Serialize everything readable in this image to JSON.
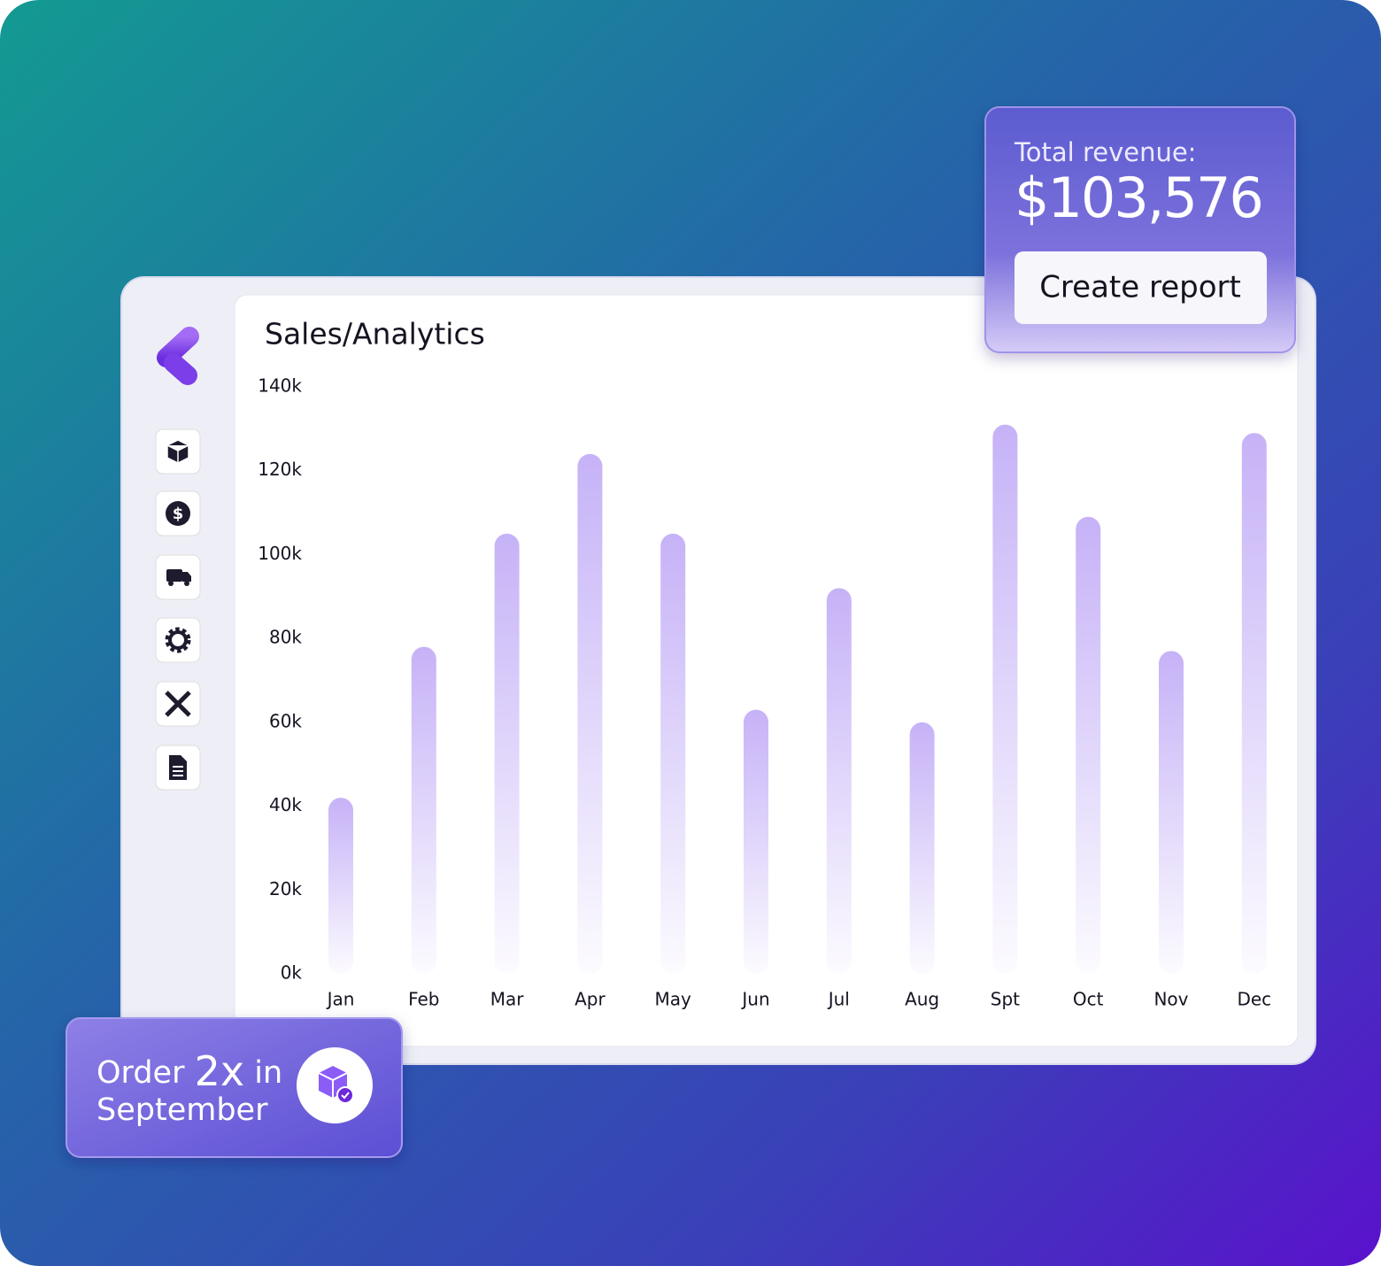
{
  "chart_data": {
    "type": "bar",
    "title": "Sales/Analytics",
    "categories": [
      "Jan",
      "Feb",
      "Mar",
      "Apr",
      "May",
      "Jun",
      "Jul",
      "Aug",
      "Spt",
      "Oct",
      "Nov",
      "Dec"
    ],
    "values": [
      42000,
      78000,
      105000,
      124000,
      105000,
      63000,
      92000,
      60000,
      131000,
      109000,
      77000,
      129000
    ],
    "color": "#c6b2f7",
    "ylim": [
      0,
      140000
    ],
    "yticks": [
      {
        "value": 0,
        "label": "0k"
      },
      {
        "value": 20000,
        "label": "20k"
      },
      {
        "value": 40000,
        "label": "40k"
      },
      {
        "value": 60000,
        "label": "60k"
      },
      {
        "value": 80000,
        "label": "80k"
      },
      {
        "value": 100000,
        "label": "100k"
      },
      {
        "value": 120000,
        "label": "120k"
      },
      {
        "value": 140000,
        "label": "140k"
      }
    ],
    "grid": false
  },
  "revenue_card": {
    "label": "Total revenue:",
    "amount": "$103,576",
    "button": "Create report"
  },
  "badge": {
    "text": [
      "Order",
      "2x",
      "in",
      "September"
    ]
  }
}
